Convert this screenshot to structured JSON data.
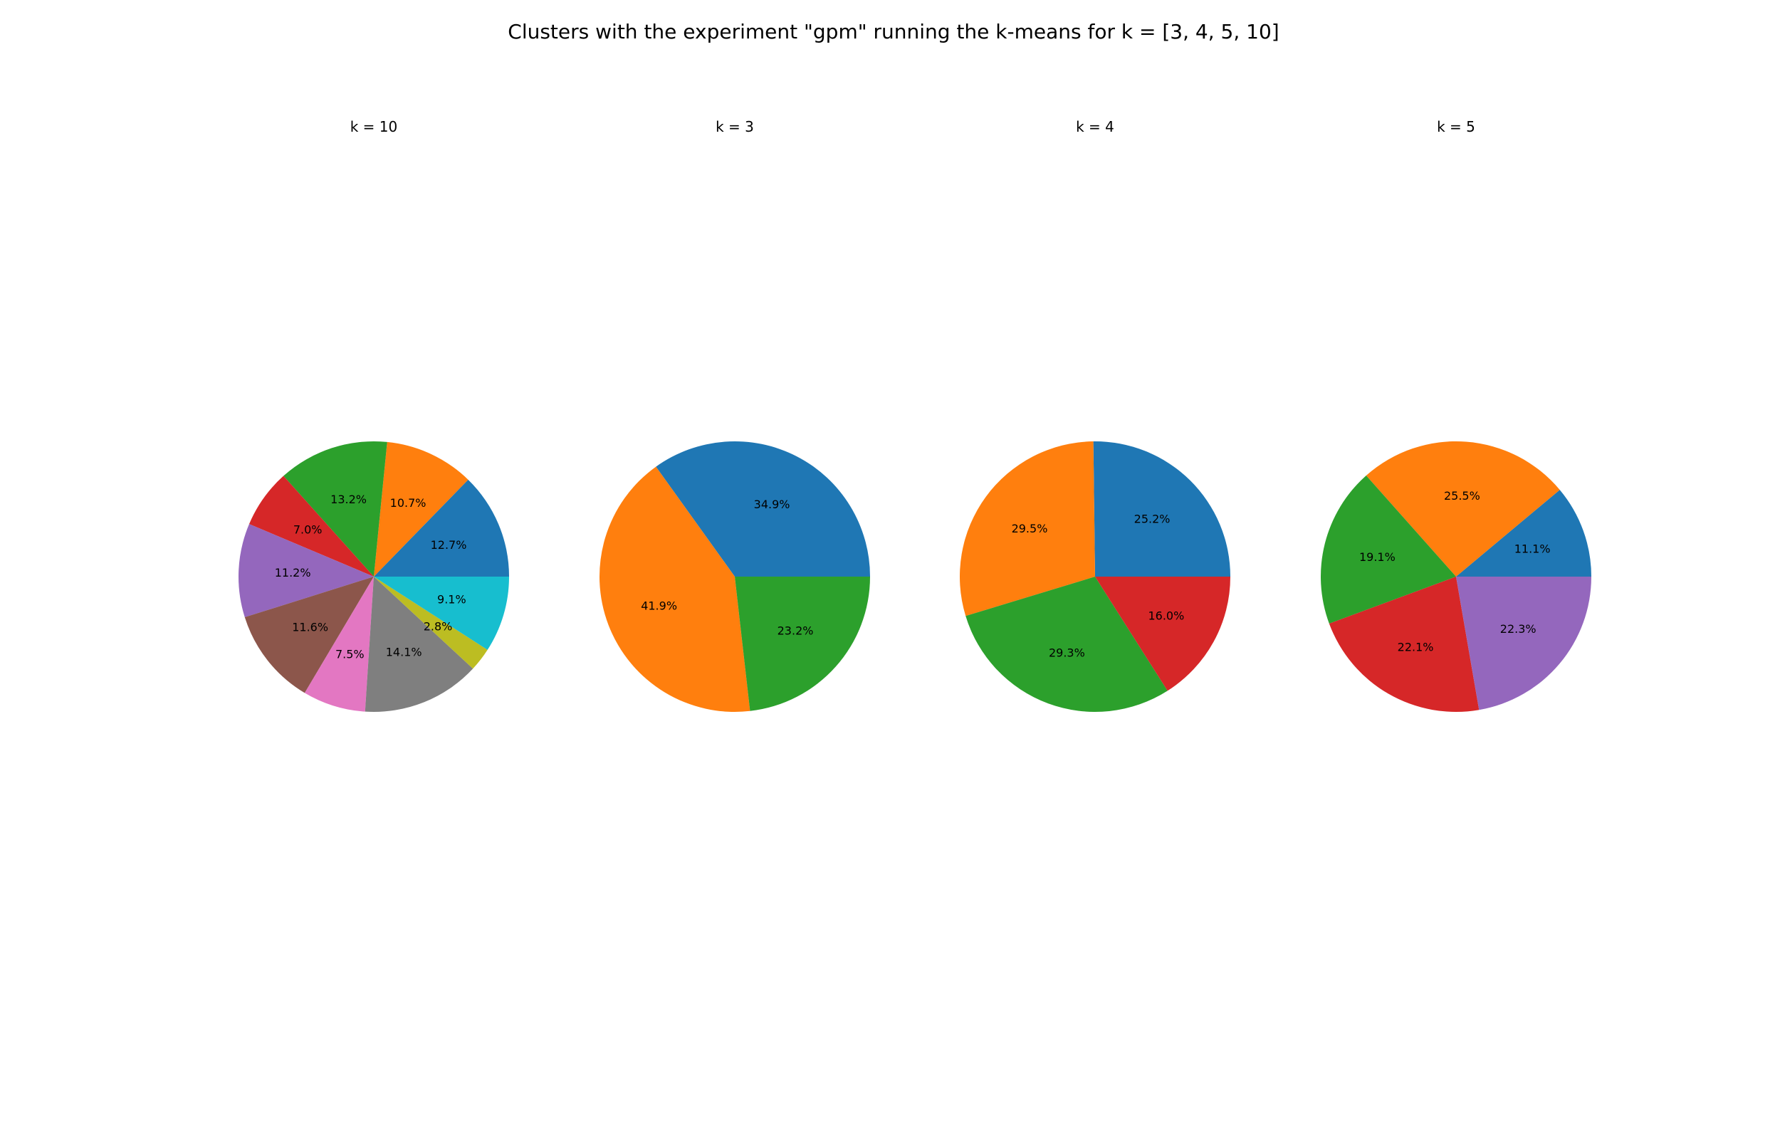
{
  "figure": {
    "title": "Clusters with the experiment \"gpm\" running the k-means for k = [3, 4, 5, 10]"
  },
  "chart_data": [
    {
      "type": "pie",
      "title": "k = 10",
      "start_angle_deg": 0,
      "direction": "counterclockwise",
      "labels_format": "%.1f%%",
      "values": [
        12.7,
        10.7,
        13.2,
        7.0,
        11.2,
        11.6,
        7.5,
        14.1,
        2.8,
        9.1
      ],
      "value_labels": [
        "12.7%",
        "10.7%",
        "13.2%",
        "7.0%",
        "11.2%",
        "11.6%",
        "7.5%",
        "14.1%",
        "2.8%",
        "9.1%"
      ],
      "colors": [
        "#1f77b4",
        "#ff7f0e",
        "#2ca02c",
        "#d62728",
        "#9467bd",
        "#8c564b",
        "#e377c2",
        "#7f7f7f",
        "#bcbd22",
        "#17becf"
      ]
    },
    {
      "type": "pie",
      "title": "k = 3",
      "start_angle_deg": 0,
      "direction": "counterclockwise",
      "labels_format": "%.1f%%",
      "values": [
        34.9,
        41.9,
        23.2
      ],
      "value_labels": [
        "34.9%",
        "41.9%",
        "23.2%"
      ],
      "colors": [
        "#1f77b4",
        "#ff7f0e",
        "#2ca02c"
      ]
    },
    {
      "type": "pie",
      "title": "k = 4",
      "start_angle_deg": 0,
      "direction": "counterclockwise",
      "labels_format": "%.1f%%",
      "values": [
        25.2,
        29.5,
        29.3,
        16.0
      ],
      "value_labels": [
        "25.2%",
        "29.5%",
        "29.3%",
        "16.0%"
      ],
      "colors": [
        "#1f77b4",
        "#ff7f0e",
        "#2ca02c",
        "#d62728"
      ]
    },
    {
      "type": "pie",
      "title": "k = 5",
      "start_angle_deg": 0,
      "direction": "counterclockwise",
      "labels_format": "%.1f%%",
      "values": [
        11.1,
        25.5,
        19.1,
        22.1,
        22.3
      ],
      "value_labels": [
        "11.1%",
        "25.5%",
        "19.1%",
        "22.1%",
        "22.3%"
      ],
      "colors": [
        "#1f77b4",
        "#ff7f0e",
        "#2ca02c",
        "#d62728",
        "#9467bd"
      ]
    }
  ]
}
